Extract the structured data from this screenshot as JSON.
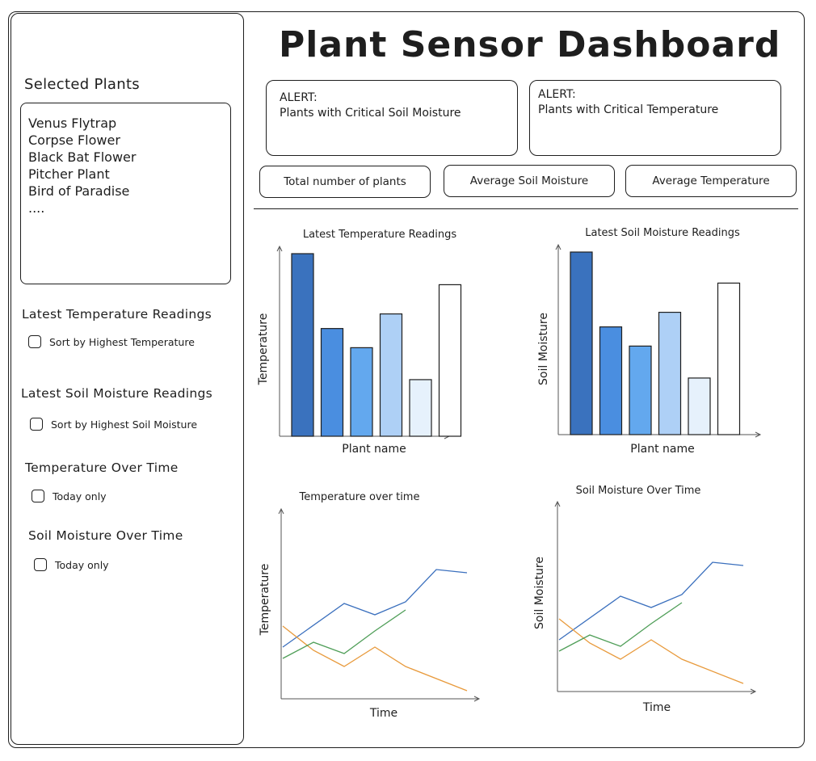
{
  "sidebar": {
    "title": "Selected Plants",
    "plants": [
      "Venus Flytrap",
      "Corpse Flower",
      "Black Bat Flower",
      "Pitcher Plant",
      "Bird of Paradise",
      "...."
    ],
    "sections": [
      {
        "title": "Latest Temperature Readings",
        "checkbox": "Sort by Highest Temperature"
      },
      {
        "title": "Latest Soil Moisture Readings",
        "checkbox": "Sort by Highest Soil Moisture"
      },
      {
        "title": "Temperature Over Time",
        "checkbox": "Today only"
      },
      {
        "title": "Soil Moisture Over Time",
        "checkbox": "Today only"
      }
    ]
  },
  "main": {
    "title": "Plant Sensor Dashboard",
    "alerts": [
      {
        "heading": "ALERT:",
        "text": "Plants with Critical Soil Moisture"
      },
      {
        "heading": "ALERT:",
        "text": "Plants with Critical Temperature"
      }
    ],
    "kpis": [
      "Total number of plants",
      "Average Soil Moisture",
      "Average Temperature"
    ]
  },
  "colors": {
    "bar_fills": [
      "#3a72be",
      "#4a8ee0",
      "#63a8ee",
      "#aed0f6",
      "#e6f1fc",
      "#ffffff"
    ],
    "line_series": [
      "#3a6fbd",
      "#e89a3c",
      "#4f9e58"
    ]
  },
  "chart_data": [
    {
      "type": "bar",
      "title": "Latest Temperature Readings",
      "xlabel": "Plant name",
      "ylabel": "Temperature",
      "values": [
        100,
        59,
        48.5,
        67,
        31,
        83
      ]
    },
    {
      "type": "bar",
      "title": "Latest Soil Moisture Readings",
      "xlabel": "Plant name",
      "ylabel": "Soil Moisture",
      "values": [
        100,
        59,
        48.5,
        67,
        31,
        83
      ]
    },
    {
      "type": "line",
      "title": "Temperature over time",
      "xlabel": "Time",
      "ylabel": "Temperature",
      "x": [
        0,
        1,
        2,
        3,
        4,
        5,
        6
      ],
      "ylim": [
        0,
        100
      ],
      "series": [
        {
          "values": [
            32,
            null,
            59,
            52,
            60,
            80,
            78
          ]
        },
        {
          "values": [
            45,
            30,
            20,
            32,
            20,
            null,
            5
          ]
        },
        {
          "values": [
            25,
            35,
            28,
            42,
            55,
            null,
            null
          ]
        }
      ]
    },
    {
      "type": "line",
      "title": "Soil Moisture Over Time",
      "xlabel": "Time",
      "ylabel": "Soil Moisture",
      "x": [
        0,
        1,
        2,
        3,
        4,
        5,
        6
      ],
      "ylim": [
        0,
        100
      ],
      "series": [
        {
          "values": [
            32,
            null,
            59,
            52,
            60,
            80,
            78
          ]
        },
        {
          "values": [
            45,
            30,
            20,
            32,
            20,
            null,
            5
          ]
        },
        {
          "values": [
            25,
            35,
            28,
            42,
            55,
            null,
            null
          ]
        }
      ]
    }
  ]
}
